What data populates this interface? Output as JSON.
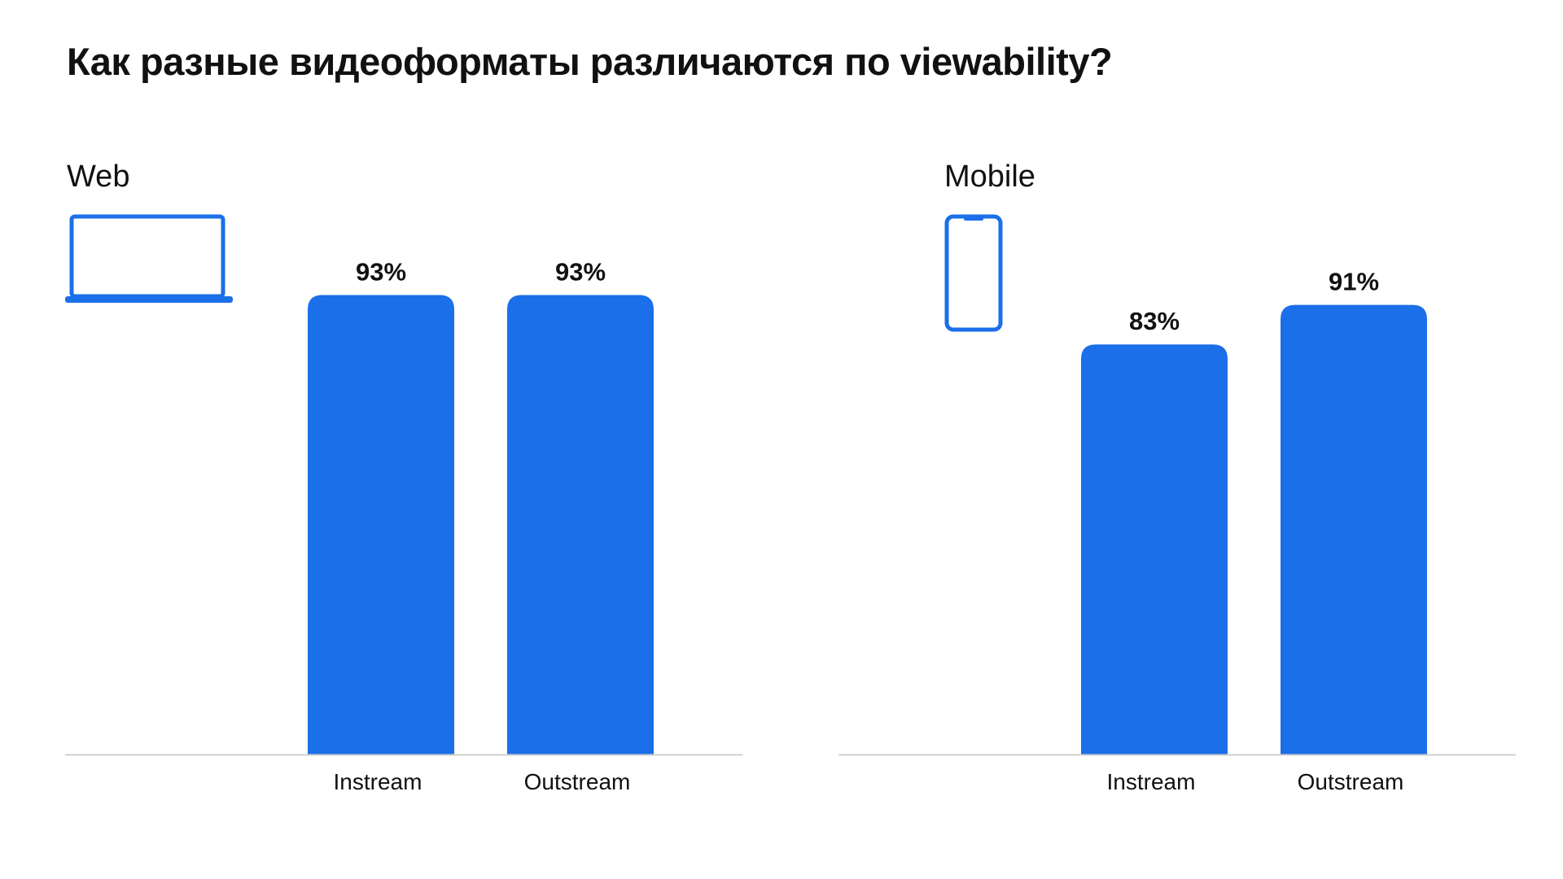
{
  "title": "Как разные видеоформаты различаются по viewability?",
  "colors": {
    "bar": "#1b6fe8",
    "baseline": "#cfcfcf",
    "text": "#111111"
  },
  "panels": [
    {
      "label": "Web",
      "icon": "laptop-icon"
    },
    {
      "label": "Mobile",
      "icon": "smartphone-icon"
    }
  ],
  "chart_data": [
    {
      "type": "bar",
      "title": "Web",
      "categories": [
        "Instream",
        "Outstream"
      ],
      "values": [
        93,
        93
      ],
      "value_labels": [
        "93%",
        "93%"
      ],
      "unit": "%",
      "ylim": [
        0,
        100
      ],
      "grid": false,
      "legend": "none"
    },
    {
      "type": "bar",
      "title": "Mobile",
      "categories": [
        "Instream",
        "Outstream"
      ],
      "values": [
        83,
        91
      ],
      "value_labels": [
        "83%",
        "91%"
      ],
      "unit": "%",
      "ylim": [
        0,
        100
      ],
      "grid": false,
      "legend": "none"
    }
  ]
}
